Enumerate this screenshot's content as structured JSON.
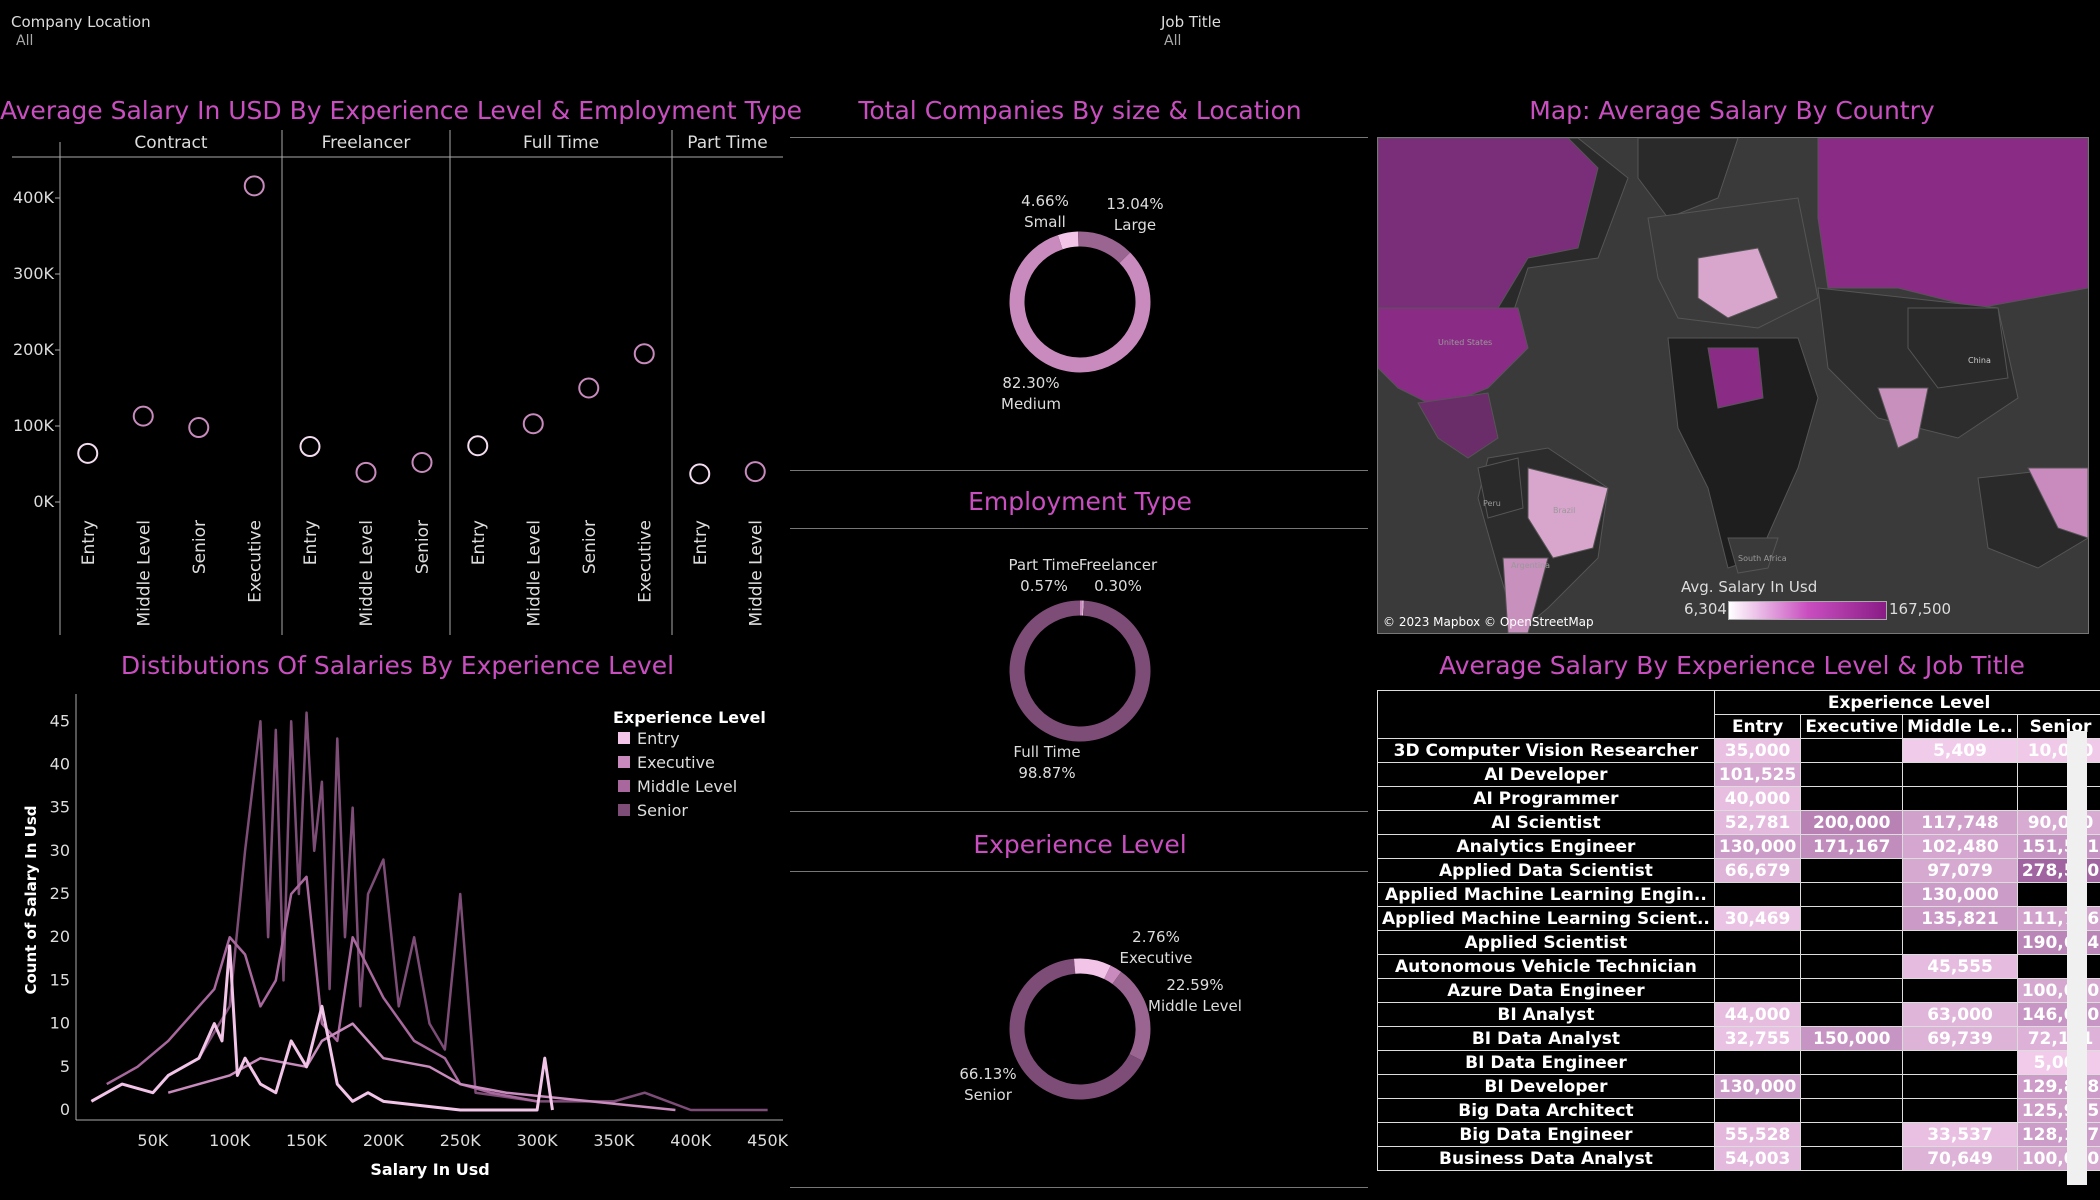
{
  "filters": {
    "company_location": {
      "label": "Company Location",
      "value": "All"
    },
    "job_title": {
      "label": "Job Title",
      "value": "All"
    }
  },
  "colors": {
    "accent": "#c94fc0",
    "entry": "#f2c4e8",
    "executive": "#c98bbd",
    "middle": "#a8689d",
    "senior": "#7d4d77"
  },
  "titles": {
    "scatter": "Average Salary In USD By Experience Level & Employment Type",
    "companies": "Total Companies By size & Location",
    "map": "Map: Average Salary By Country",
    "distribution": "Distibutions Of Salaries By Experience Level",
    "employment": "Employment Type",
    "experience": "Experience Level",
    "heatmap": "Average Salary By Experience Level & Job Title"
  },
  "map": {
    "attribution": "© 2023 Mapbox © OpenStreetMap",
    "legend_title": "Avg. Salary In Usd",
    "legend_min": "6,304",
    "legend_max": "167,500",
    "labels": [
      "United States",
      "China",
      "Brazil",
      "Peru",
      "South Africa",
      "Argentina"
    ]
  },
  "chart_data": [
    {
      "type": "scatter",
      "title": "Average Salary In USD By Experience Level & Employment Type",
      "yticks": [
        "400K",
        "300K",
        "200K",
        "100K",
        "0K"
      ],
      "ylim": [
        0,
        450000
      ],
      "panels": [
        {
          "name": "Contract",
          "categories": [
            "Entry",
            "Middle Level",
            "Senior",
            "Executive"
          ],
          "values": [
            64000,
            113000,
            98000,
            416000
          ]
        },
        {
          "name": "Freelancer",
          "categories": [
            "Entry",
            "Middle Level",
            "Senior"
          ],
          "values": [
            73000,
            39000,
            52000
          ]
        },
        {
          "name": "Full Time",
          "categories": [
            "Entry",
            "Middle Level",
            "Senior",
            "Executive"
          ],
          "values": [
            74000,
            103000,
            150000,
            195000
          ]
        },
        {
          "name": "Part Time",
          "categories": [
            "Entry",
            "Middle Level"
          ],
          "values": [
            37000,
            40000
          ]
        }
      ]
    },
    {
      "type": "pie",
      "title": "Total Companies By size & Location",
      "slices": [
        {
          "label": "Small",
          "pct": "4.66%",
          "value": 4.66
        },
        {
          "label": "Large",
          "pct": "13.04%",
          "value": 13.04
        },
        {
          "label": "Medium",
          "pct": "82.30%",
          "value": 82.3
        }
      ]
    },
    {
      "type": "pie",
      "title": "Employment Type",
      "slices": [
        {
          "label": "Part Time",
          "pct": "0.57%",
          "value": 0.57
        },
        {
          "label": "Freelancer",
          "pct": "0.30%",
          "value": 0.3
        },
        {
          "label": "Full Time",
          "pct": "98.87%",
          "value": 98.87
        }
      ]
    },
    {
      "type": "pie",
      "title": "Experience Level",
      "slices": [
        {
          "label": "Executive",
          "pct": "2.76%",
          "value": 2.76
        },
        {
          "label": "Middle Level",
          "pct": "22.59%",
          "value": 22.59
        },
        {
          "label": "Senior",
          "pct": "66.13%",
          "value": 66.13
        },
        {
          "label": "Entry",
          "pct": "",
          "value": 8.52
        }
      ]
    },
    {
      "type": "line",
      "title": "Distibutions Of Salaries By Experience Level",
      "xlabel": "Salary In Usd",
      "ylabel": "Count of Salary In Usd",
      "xticks": [
        "50K",
        "100K",
        "150K",
        "200K",
        "250K",
        "300K",
        "350K",
        "400K",
        "450K"
      ],
      "yticks": [
        "45",
        "40",
        "35",
        "30",
        "25",
        "20",
        "15",
        "10",
        "5",
        "0"
      ],
      "xlim": [
        0,
        460000
      ],
      "ylim": [
        0,
        47
      ],
      "legend_title": "Experience Level",
      "series": [
        {
          "name": "Entry",
          "x": [
            10000,
            30000,
            50000,
            60000,
            70000,
            80000,
            90000,
            95000,
            100000,
            105000,
            110000,
            120000,
            130000,
            140000,
            150000,
            160000,
            170000,
            180000,
            190000,
            200000,
            250000,
            300000,
            305000,
            310000
          ],
          "y": [
            1,
            3,
            2,
            4,
            5,
            6,
            10,
            8,
            19,
            4,
            6,
            3,
            2,
            8,
            5,
            12,
            3,
            1,
            2,
            1,
            0,
            0,
            6,
            0
          ]
        },
        {
          "name": "Executive",
          "x": [
            60000,
            100000,
            120000,
            150000,
            160000,
            180000,
            200000,
            230000,
            250000,
            280000,
            390000
          ],
          "y": [
            2,
            4,
            6,
            5,
            8,
            10,
            6,
            5,
            3,
            2,
            0
          ]
        },
        {
          "name": "Middle Level",
          "x": [
            20000,
            40000,
            60000,
            80000,
            90000,
            100000,
            110000,
            120000,
            130000,
            140000,
            150000,
            160000,
            170000,
            180000,
            200000,
            220000,
            240000,
            250000,
            270000,
            300000
          ],
          "y": [
            3,
            5,
            8,
            12,
            14,
            20,
            18,
            12,
            15,
            25,
            27,
            10,
            8,
            20,
            13,
            8,
            6,
            3,
            2,
            1
          ]
        },
        {
          "name": "Senior",
          "x": [
            80000,
            100000,
            110000,
            120000,
            125000,
            130000,
            135000,
            140000,
            145000,
            150000,
            155000,
            160000,
            165000,
            170000,
            175000,
            180000,
            185000,
            190000,
            200000,
            210000,
            220000,
            230000,
            240000,
            250000,
            260000,
            300000,
            350000,
            370000,
            400000,
            450000
          ],
          "y": [
            6,
            12,
            30,
            45,
            20,
            44,
            15,
            45,
            25,
            46,
            30,
            38,
            14,
            43,
            20,
            35,
            12,
            25,
            29,
            12,
            20,
            10,
            7,
            25,
            2,
            1,
            1,
            2,
            0,
            0
          ]
        }
      ]
    },
    {
      "type": "heatmap",
      "title": "Average Salary By Experience Level & Job Title",
      "column_header": "Experience Level",
      "columns": [
        "Entry",
        "Executive",
        "Middle Le..",
        "Senior"
      ],
      "rows": [
        {
          "job": "3D Computer Vision Researcher",
          "values": [
            "35,000",
            "",
            "5,409",
            "10,000"
          ]
        },
        {
          "job": "AI Developer",
          "values": [
            "101,525",
            "",
            "",
            ""
          ]
        },
        {
          "job": "AI Programmer",
          "values": [
            "40,000",
            "",
            "",
            ""
          ]
        },
        {
          "job": "AI Scientist",
          "values": [
            "52,781",
            "200,000",
            "117,748",
            "90,000"
          ]
        },
        {
          "job": "Analytics Engineer",
          "values": [
            "130,000",
            "171,167",
            "102,480",
            "151,561"
          ]
        },
        {
          "job": "Applied Data Scientist",
          "values": [
            "66,679",
            "",
            "97,079",
            "278,500"
          ]
        },
        {
          "job": "Applied Machine Learning Engin..",
          "values": [
            "",
            "",
            "130,000",
            ""
          ]
        },
        {
          "job": "Applied Machine Learning Scient..",
          "values": [
            "30,469",
            "",
            "135,821",
            "111,706"
          ]
        },
        {
          "job": "Applied Scientist",
          "values": [
            "",
            "",
            "",
            "190,614"
          ]
        },
        {
          "job": "Autonomous Vehicle Technician",
          "values": [
            "",
            "",
            "45,555",
            ""
          ]
        },
        {
          "job": "Azure Data Engineer",
          "values": [
            "",
            "",
            "",
            "100,000"
          ]
        },
        {
          "job": "BI Analyst",
          "values": [
            "44,000",
            "",
            "63,000",
            "146,000"
          ]
        },
        {
          "job": "BI Data Analyst",
          "values": [
            "32,755",
            "150,000",
            "69,739",
            "72,101"
          ]
        },
        {
          "job": "BI Data Engineer",
          "values": [
            "",
            "",
            "",
            "5,000"
          ]
        },
        {
          "job": "BI Developer",
          "values": [
            "130,000",
            "",
            "",
            "129,818"
          ]
        },
        {
          "job": "Big Data Architect",
          "values": [
            "",
            "",
            "",
            "125,915"
          ]
        },
        {
          "job": "Big Data Engineer",
          "values": [
            "55,528",
            "",
            "33,537",
            "128,127"
          ]
        },
        {
          "job": "Business Data Analyst",
          "values": [
            "54,003",
            "",
            "70,649",
            "100,000"
          ]
        }
      ]
    }
  ]
}
